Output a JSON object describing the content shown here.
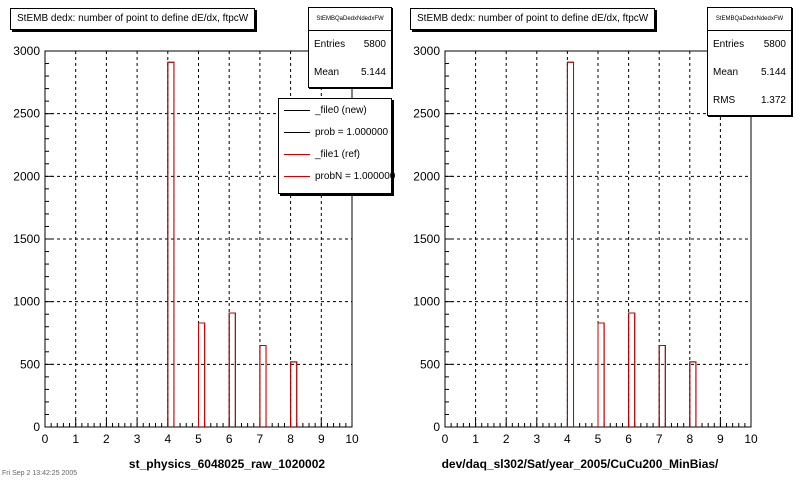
{
  "colors": {
    "new": "#000000",
    "ref": "#cc0000",
    "grid": "#000000",
    "background": "#ffffff"
  },
  "footer_text": "Fri Sep 2 13:42:25 2005",
  "pads": [
    {
      "title": "StEMB dedx: number of point to define dE/dx, ftpcW",
      "stats": {
        "name": "StEMBQaDedxNdedxFW",
        "rows": [
          {
            "label": "Entries",
            "value": "5800"
          },
          {
            "label": "Mean",
            "value": "5.144"
          }
        ]
      },
      "legend": [
        {
          "label": "_file0 (new)",
          "color": "#000000"
        },
        {
          "label": "prob = 1.000000",
          "color": "#000000"
        },
        {
          "label": "_file1 (ref)",
          "color": "#cc0000"
        },
        {
          "label": "probN = 1.000000",
          "color": "#cc0000"
        }
      ],
      "xlabel": "st_physics_6048025_raw_1020002"
    },
    {
      "title": "StEMB dedx: number of point to define dE/dx, ftpcW",
      "stats": {
        "name": "StEMBQaDedxNdedxFW",
        "rows": [
          {
            "label": "Entries",
            "value": "5800"
          },
          {
            "label": "Mean",
            "value": "5.144"
          },
          {
            "label": "RMS",
            "value": "1.372"
          }
        ]
      },
      "legend": [],
      "xlabel": "dev/daq_sl302/Sat/year_2005/CuCu200_MinBias/"
    }
  ],
  "chart_data": [
    {
      "type": "bar",
      "title": "StEMB dedx: number of point to define dE/dx, ftpcW",
      "xlabel": "st_physics_6048025_raw_1020002",
      "ylabel": "",
      "xlim": [
        0,
        10
      ],
      "ylim": [
        0,
        3000
      ],
      "xticks": [
        "0",
        "1",
        "2",
        "3",
        "4",
        "5",
        "6",
        "7",
        "8",
        "9",
        "10"
      ],
      "yticks": [
        "0",
        "500",
        "1000",
        "1500",
        "2000",
        "2500",
        "3000"
      ],
      "grid": true,
      "legend_position": "top-right",
      "bins": 50,
      "series": [
        {
          "name": "_file0 (new)",
          "color": "#000000",
          "x": [
            4.1,
            5.1,
            6.1,
            7.1,
            8.1
          ],
          "values": [
            2910,
            830,
            910,
            650,
            520
          ]
        },
        {
          "name": "_file1 (ref)",
          "color": "#cc0000",
          "x": [
            4.1,
            5.1,
            6.1,
            7.1,
            8.1
          ],
          "values": [
            2910,
            830,
            910,
            650,
            520
          ]
        }
      ]
    },
    {
      "type": "bar",
      "title": "StEMB dedx: number of point to define dE/dx, ftpcW",
      "xlabel": "dev/daq_sl302/Sat/year_2005/CuCu200_MinBias/",
      "ylabel": "",
      "xlim": [
        0,
        10
      ],
      "ylim": [
        0,
        3000
      ],
      "xticks": [
        "0",
        "1",
        "2",
        "3",
        "4",
        "5",
        "6",
        "7",
        "8",
        "9",
        "10"
      ],
      "yticks": [
        "0",
        "500",
        "1000",
        "1500",
        "2000",
        "2500",
        "3000"
      ],
      "grid": true,
      "bins": 50,
      "series": [
        {
          "color": "#000000",
          "x": [
            4.1,
            5.1,
            6.1,
            7.1,
            8.1
          ],
          "values": [
            2910,
            830,
            910,
            650,
            520
          ]
        },
        {
          "color": "#cc0000",
          "x": [
            4.1,
            5.1,
            6.1,
            7.1,
            8.1
          ],
          "values": [
            2910,
            830,
            910,
            650,
            520
          ]
        }
      ]
    }
  ]
}
